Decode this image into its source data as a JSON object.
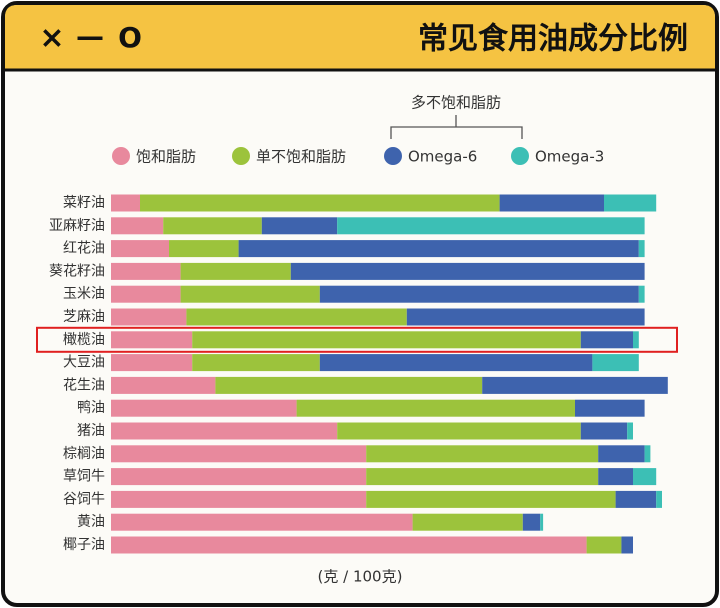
{
  "window": {
    "controls": [
      "×",
      "—",
      "O"
    ]
  },
  "chart_data": {
    "type": "stacked-barh",
    "title": "常见食用油成分比例",
    "legend_group_label": "多不饱和脂肪",
    "xlabel": "(克 / 100克)",
    "categories": [
      "菜籽油",
      "亚麻籽油",
      "红花油",
      "葵花籽油",
      "玉米油",
      "芝麻油",
      "橄榄油",
      "大豆油",
      "花生油",
      "鸭油",
      "猪油",
      "棕榈油",
      "草饲牛",
      "谷饲牛",
      "黄油",
      "椰子油"
    ],
    "series": [
      {
        "name": "饱和脂肪",
        "color": "#e8899d",
        "values": [
          5,
          9,
          10,
          12,
          12,
          13,
          14,
          14,
          18,
          32,
          39,
          44,
          44,
          44,
          52,
          82
        ]
      },
      {
        "name": "单不饱和脂肪",
        "color": "#9cc33c",
        "values": [
          62,
          17,
          12,
          19,
          24,
          38,
          67,
          22,
          46,
          48,
          42,
          40,
          40,
          43,
          19,
          6
        ]
      },
      {
        "name": "Omega-6",
        "color": "#3e63ad",
        "values": [
          18,
          13,
          69,
          61,
          55,
          41,
          9,
          47,
          32,
          12,
          8,
          8,
          6,
          7,
          3,
          2
        ]
      },
      {
        "name": "Omega-3",
        "color": "#3cbfb5",
        "values": [
          9,
          53,
          1,
          0,
          1,
          0,
          1,
          8,
          0,
          0,
          1,
          1,
          4,
          1,
          0.5,
          0
        ]
      }
    ],
    "xlim": [
      0,
      100
    ],
    "highlight_index": 6,
    "highlight_color": "#e02020"
  }
}
